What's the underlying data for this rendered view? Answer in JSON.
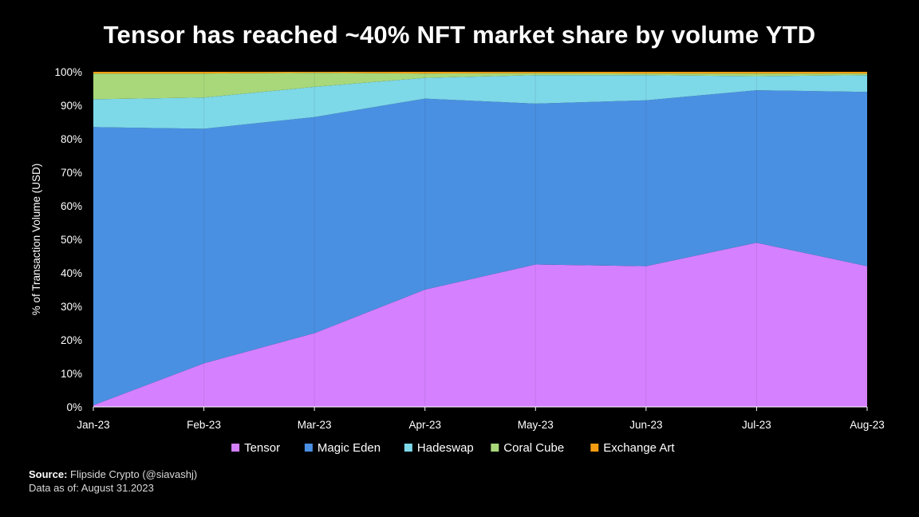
{
  "chart_data": {
    "type": "area",
    "stacked": true,
    "title": "Tensor has reached ~40% NFT market share by volume YTD",
    "ylabel": "% of Transaction Volume (USD)",
    "xlabel": "",
    "ylim": [
      0,
      100
    ],
    "y_ticks": [
      "0%",
      "10%",
      "20%",
      "30%",
      "40%",
      "50%",
      "60%",
      "70%",
      "80%",
      "90%",
      "100%"
    ],
    "categories": [
      "Jan-23",
      "Feb-23",
      "Mar-23",
      "Apr-23",
      "May-23",
      "Jun-23",
      "Jul-23",
      "Aug-23"
    ],
    "legend_position": "bottom",
    "series": [
      {
        "name": "Tensor",
        "color": "#d580ff",
        "values": [
          0.5,
          13,
          22,
          35,
          42.5,
          42,
          49,
          42
        ]
      },
      {
        "name": "Magic Eden",
        "color": "#4a90e2",
        "values": [
          83,
          70,
          64.5,
          57,
          48,
          49.5,
          45.5,
          52
        ]
      },
      {
        "name": "Hadeswap",
        "color": "#7dd8e8",
        "values": [
          8.3,
          9.3,
          9,
          6.2,
          8.5,
          7.5,
          4.2,
          5
        ]
      },
      {
        "name": "Coral Cube",
        "color": "#a8d87a",
        "values": [
          7.7,
          7.2,
          4.2,
          1.3,
          0.6,
          0.5,
          0.8,
          0.5
        ]
      },
      {
        "name": "Exchange Art",
        "color": "#f39c12",
        "values": [
          0.5,
          0.5,
          0.3,
          0.5,
          0.4,
          0.5,
          0.5,
          0.5
        ]
      }
    ]
  },
  "footer": {
    "source_label": "Source:",
    "source_text": "Flipside Crypto (@siavashj)",
    "date_label": "Data as of:",
    "date_text": "August 31.2023"
  }
}
